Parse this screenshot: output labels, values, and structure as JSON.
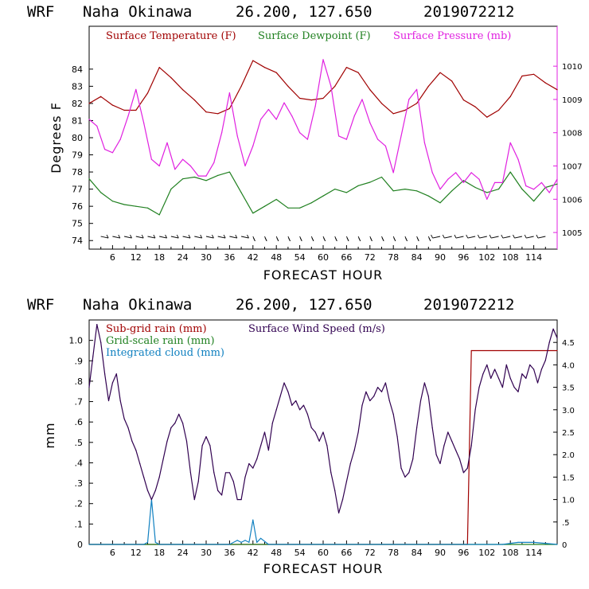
{
  "chart_data": [
    {
      "type": "line",
      "header": {
        "model": "WRF",
        "location": "Naha Okinawa",
        "coords": "26.200, 127.650",
        "init": "2019072212"
      },
      "xlabel": "FORECAST HOUR",
      "ylabel": "Degrees F",
      "xlim": [
        0,
        120
      ],
      "x_ticks": [
        "6",
        "12",
        "18",
        "24",
        "30",
        "36",
        "42",
        "48",
        "54",
        "60",
        "66",
        "72",
        "78",
        "84",
        "90",
        "96",
        "102",
        "108",
        "114"
      ],
      "ylim": [
        73.5,
        86.5
      ],
      "y_ticks": [
        "74",
        "75",
        "76",
        "77",
        "78",
        "79",
        "80",
        "81",
        "82",
        "83",
        "84"
      ],
      "y2lim": [
        1004.5,
        1011.2
      ],
      "y2_ticks": [
        "1005",
        "1006",
        "1007",
        "1008",
        "1009",
        "1010"
      ],
      "colors": {
        "temp": "#a00000",
        "dew": "#208020",
        "pres": "#e020e0",
        "wind": "#000000"
      },
      "series": [
        {
          "name": "Surface Temperature (F)",
          "axis": "left",
          "x": [
            0,
            3,
            6,
            9,
            12,
            15,
            18,
            21,
            24,
            27,
            30,
            33,
            36,
            39,
            42,
            45,
            48,
            51,
            54,
            57,
            60,
            63,
            66,
            69,
            72,
            75,
            78,
            81,
            84,
            87,
            90,
            93,
            96,
            99,
            102,
            105,
            108,
            111,
            114,
            117,
            120
          ],
          "values": [
            82,
            82.4,
            81.9,
            81.6,
            81.6,
            82.6,
            84.1,
            83.5,
            82.8,
            82.2,
            81.5,
            81.4,
            81.7,
            83.0,
            84.5,
            84.1,
            83.8,
            83.0,
            82.3,
            82.2,
            82.3,
            83.0,
            84.1,
            83.8,
            82.8,
            82.0,
            81.4,
            81.6,
            82.0,
            83.0,
            83.8,
            83.3,
            82.2,
            81.8,
            81.2,
            81.6,
            82.4,
            83.6,
            83.7,
            83.2,
            82.8
          ]
        },
        {
          "name": "Surface Dewpoint (F)",
          "axis": "left",
          "x": [
            0,
            3,
            6,
            9,
            12,
            15,
            18,
            21,
            24,
            27,
            30,
            33,
            36,
            39,
            42,
            45,
            48,
            51,
            54,
            57,
            60,
            63,
            66,
            69,
            72,
            75,
            78,
            81,
            84,
            87,
            90,
            93,
            96,
            99,
            102,
            105,
            108,
            111,
            114,
            117,
            120
          ],
          "values": [
            77.6,
            76.8,
            76.3,
            76.1,
            76.0,
            75.9,
            75.5,
            77.0,
            77.6,
            77.7,
            77.5,
            77.8,
            78.0,
            76.8,
            75.6,
            76.0,
            76.4,
            75.9,
            75.9,
            76.2,
            76.6,
            77.0,
            76.8,
            77.2,
            77.4,
            77.7,
            76.9,
            77.0,
            76.9,
            76.6,
            76.2,
            76.9,
            77.5,
            77.1,
            76.8,
            77.0,
            78.0,
            77.0,
            76.3,
            77.1,
            77.3
          ]
        },
        {
          "name": "Surface Pressure (mb)",
          "axis": "right",
          "x": [
            0,
            2,
            4,
            6,
            8,
            10,
            12,
            14,
            16,
            18,
            20,
            22,
            24,
            26,
            28,
            30,
            32,
            34,
            36,
            38,
            40,
            42,
            44,
            46,
            48,
            50,
            52,
            54,
            56,
            58,
            60,
            62,
            64,
            66,
            68,
            70,
            72,
            74,
            76,
            78,
            80,
            82,
            84,
            86,
            88,
            90,
            92,
            94,
            96,
            98,
            100,
            102,
            104,
            106,
            108,
            110,
            112,
            114,
            116,
            118,
            120
          ],
          "values": [
            1008.4,
            1008.2,
            1007.5,
            1007.4,
            1007.8,
            1008.5,
            1009.3,
            1008.3,
            1007.2,
            1007.0,
            1007.7,
            1006.9,
            1007.2,
            1007.0,
            1006.7,
            1006.7,
            1007.1,
            1008.0,
            1009.2,
            1007.9,
            1007.0,
            1007.6,
            1008.4,
            1008.7,
            1008.4,
            1008.9,
            1008.5,
            1008.0,
            1007.8,
            1008.8,
            1010.2,
            1009.4,
            1007.9,
            1007.8,
            1008.5,
            1009.0,
            1008.3,
            1007.8,
            1007.6,
            1006.8,
            1007.9,
            1009.0,
            1009.3,
            1007.7,
            1006.8,
            1006.3,
            1006.6,
            1006.8,
            1006.5,
            1006.8,
            1006.6,
            1006.0,
            1006.5,
            1006.5,
            1007.7,
            1007.2,
            1006.4,
            1006.3,
            1006.5,
            1006.2,
            1006.6
          ]
        }
      ],
      "wind_barbs": "Surface Wind"
    },
    {
      "type": "line",
      "header": {
        "model": "WRF",
        "location": "Naha Okinawa",
        "coords": "26.200, 127.650",
        "init": "2019072212"
      },
      "xlabel": "FORECAST HOUR",
      "ylabel": "mm",
      "xlim": [
        0,
        120
      ],
      "x_ticks": [
        "6",
        "12",
        "18",
        "24",
        "30",
        "36",
        "42",
        "48",
        "54",
        "60",
        "66",
        "72",
        "78",
        "84",
        "90",
        "96",
        "102",
        "108",
        "114"
      ],
      "ylim": [
        0,
        1.1
      ],
      "y_ticks": [
        "0",
        ".1",
        ".2",
        ".3",
        ".4",
        ".5",
        ".6",
        ".7",
        ".8",
        ".9",
        "1.0"
      ],
      "y2lim": [
        0,
        5.0
      ],
      "y2_ticks": [
        "0",
        ".5",
        "1.0",
        "1.5",
        "2.0",
        "2.5",
        "3.0",
        "3.5",
        "4.0",
        "4.5"
      ],
      "colors": {
        "subgrid": "#a00000",
        "grid": "#208020",
        "cloud": "#1080c0",
        "wind": "#300050"
      },
      "series": [
        {
          "name": "Sub-grid rain (mm)",
          "axis": "left",
          "x": [
            0,
            96.9,
            97.0,
            98.0,
            120
          ],
          "values": [
            0,
            0,
            0.0,
            0.95,
            0.95
          ]
        },
        {
          "name": "Grid-scale rain (mm)",
          "axis": "left",
          "x": [
            0,
            120
          ],
          "values": [
            0,
            0
          ]
        },
        {
          "name": "Integrated cloud (mm)",
          "axis": "left",
          "x": [
            0,
            14,
            15,
            16,
            17,
            18,
            36,
            38,
            39,
            40,
            41,
            42,
            43,
            44,
            46,
            60,
            106,
            110,
            114,
            120
          ],
          "values": [
            0,
            0,
            0.01,
            0.22,
            0.01,
            0,
            0,
            0.02,
            0.01,
            0.02,
            0.01,
            0.12,
            0.01,
            0.03,
            0,
            0,
            0,
            0.01,
            0.01,
            0
          ]
        },
        {
          "name": "Surface Wind Speed (m/s)",
          "axis": "right",
          "x": [
            0,
            1,
            2,
            3,
            4,
            5,
            6,
            7,
            8,
            9,
            10,
            11,
            12,
            13,
            14,
            15,
            16,
            17,
            18,
            19,
            20,
            21,
            22,
            23,
            24,
            25,
            26,
            27,
            28,
            29,
            30,
            31,
            32,
            33,
            34,
            35,
            36,
            37,
            38,
            39,
            40,
            41,
            42,
            43,
            44,
            45,
            46,
            47,
            48,
            49,
            50,
            51,
            52,
            53,
            54,
            55,
            56,
            57,
            58,
            59,
            60,
            61,
            62,
            63,
            64,
            65,
            66,
            67,
            68,
            69,
            70,
            71,
            72,
            73,
            74,
            75,
            76,
            77,
            78,
            79,
            80,
            81,
            82,
            83,
            84,
            85,
            86,
            87,
            88,
            89,
            90,
            91,
            92,
            93,
            94,
            95,
            96,
            97,
            98,
            99,
            100,
            101,
            102,
            103,
            104,
            105,
            106,
            107,
            108,
            109,
            110,
            111,
            112,
            113,
            114,
            115,
            116,
            117,
            118,
            119,
            120
          ],
          "values": [
            3.5,
            4.2,
            4.9,
            4.5,
            3.8,
            3.2,
            3.6,
            3.8,
            3.2,
            2.8,
            2.6,
            2.3,
            2.1,
            1.8,
            1.5,
            1.2,
            1.0,
            1.2,
            1.5,
            1.9,
            2.3,
            2.6,
            2.7,
            2.9,
            2.7,
            2.3,
            1.6,
            1.0,
            1.4,
            2.2,
            2.4,
            2.2,
            1.6,
            1.2,
            1.1,
            1.6,
            1.6,
            1.4,
            1.0,
            1.0,
            1.5,
            1.8,
            1.7,
            1.9,
            2.2,
            2.5,
            2.1,
            2.7,
            3.0,
            3.3,
            3.6,
            3.4,
            3.1,
            3.2,
            3.0,
            3.1,
            2.9,
            2.6,
            2.5,
            2.3,
            2.5,
            2.2,
            1.6,
            1.2,
            0.7,
            1.0,
            1.4,
            1.8,
            2.1,
            2.5,
            3.1,
            3.4,
            3.2,
            3.3,
            3.5,
            3.4,
            3.6,
            3.2,
            2.9,
            2.4,
            1.7,
            1.5,
            1.6,
            1.9,
            2.6,
            3.2,
            3.6,
            3.3,
            2.6,
            2.0,
            1.8,
            2.2,
            2.5,
            2.3,
            2.1,
            1.9,
            1.6,
            1.7,
            2.2,
            3.0,
            3.5,
            3.8,
            4.0,
            3.7,
            3.9,
            3.7,
            3.5,
            4.0,
            3.7,
            3.5,
            3.4,
            3.8,
            3.7,
            4.0,
            3.9,
            3.6,
            3.9,
            4.1,
            4.5,
            4.8,
            4.6
          ]
        }
      ]
    }
  ]
}
